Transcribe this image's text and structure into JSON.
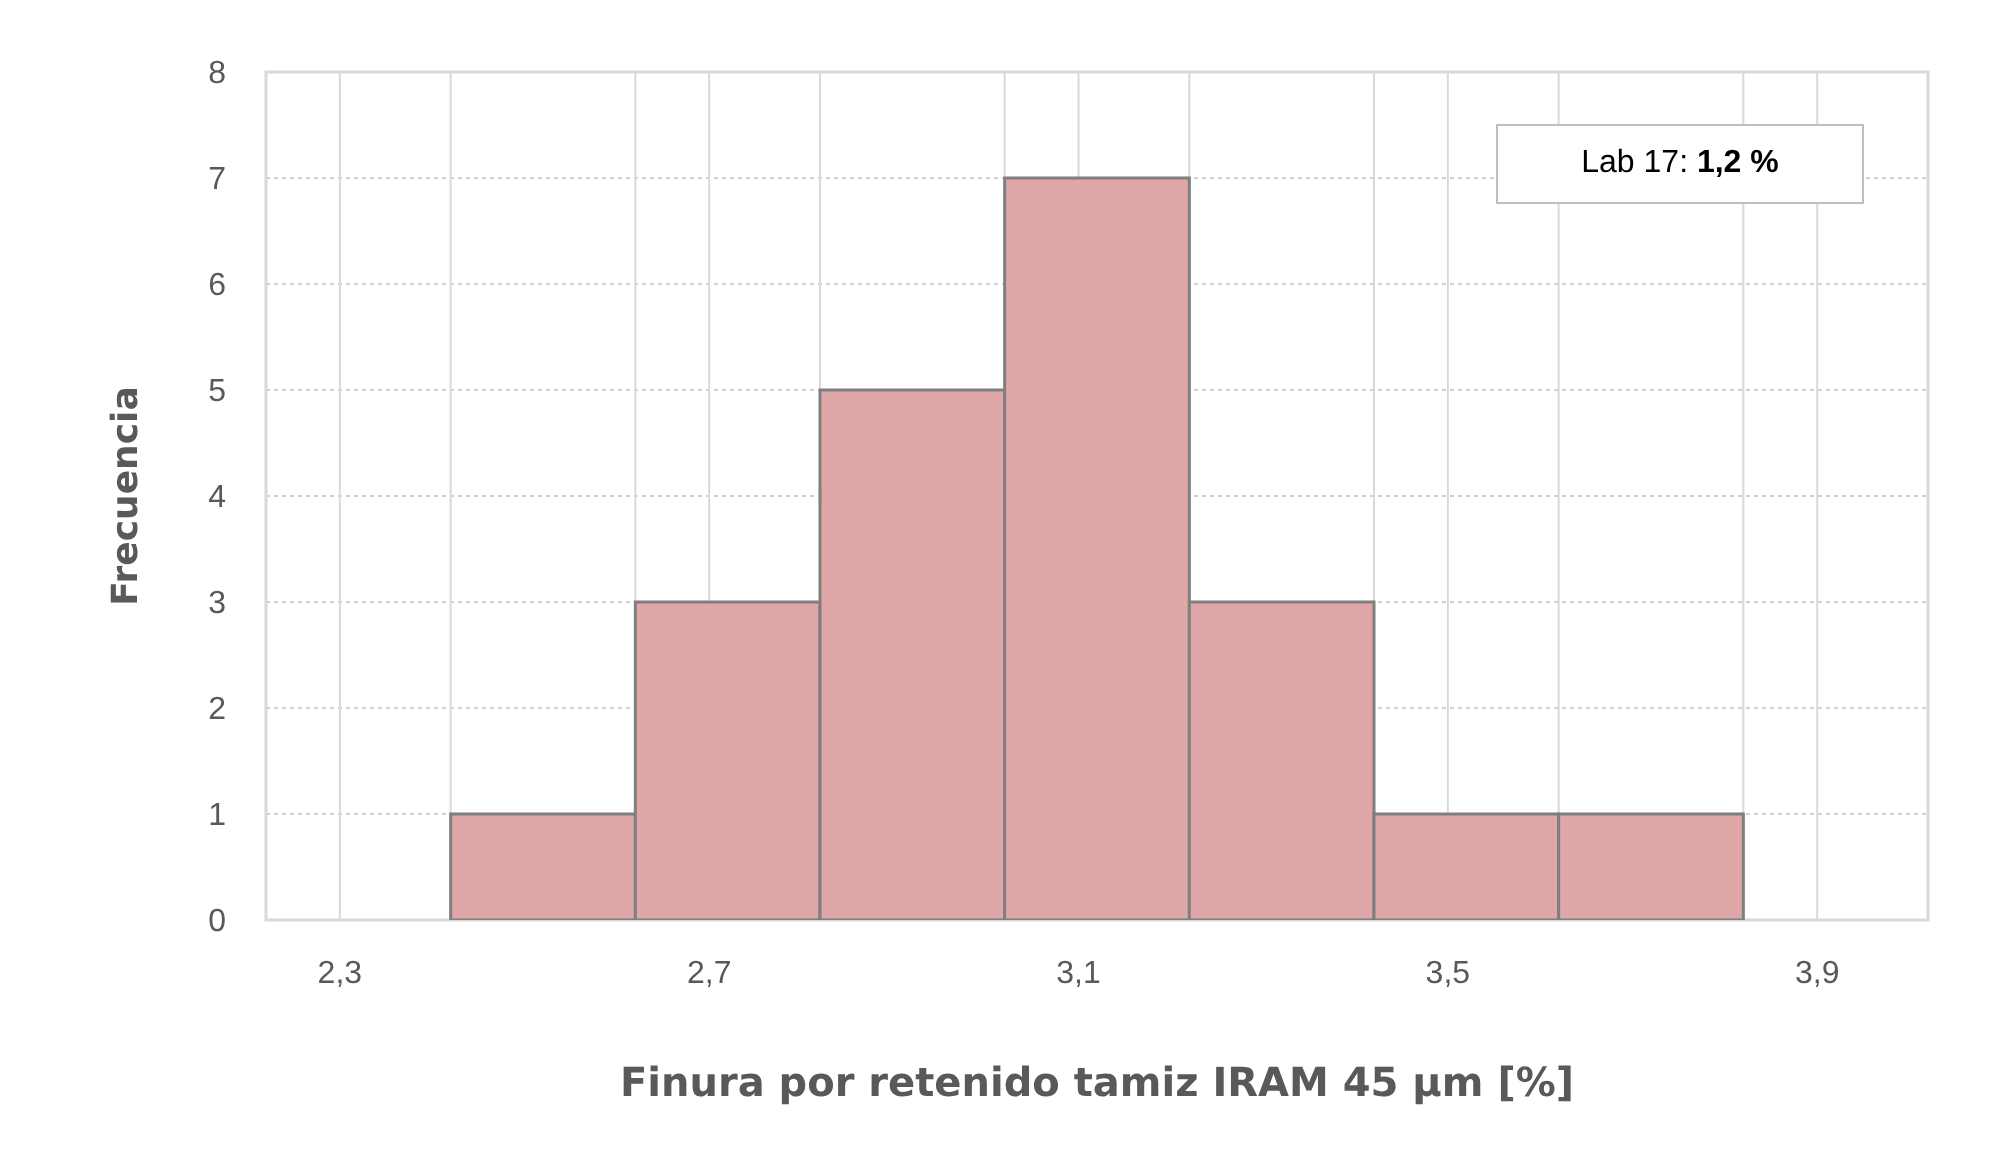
{
  "chart_data": {
    "type": "histogram",
    "bins": [
      2.42,
      2.62,
      2.82,
      3.02,
      3.22,
      3.42,
      3.62,
      3.82
    ],
    "values": [
      1,
      3,
      5,
      7,
      3,
      1,
      1
    ],
    "color": "#dfa7a7",
    "xlabel": "Finura por retenido tamiz IRAM 45 µm [%]",
    "ylabel": "Frecuencia",
    "xlim": [
      2.22,
      4.02
    ],
    "xticks": [
      {
        "value": 2.3,
        "label": "2,3"
      },
      {
        "value": 2.42,
        "label": null
      },
      {
        "value": 2.62,
        "label": null
      },
      {
        "value": 2.7,
        "label": "2,7"
      },
      {
        "value": 2.82,
        "label": null
      },
      {
        "value": 3.02,
        "label": null
      },
      {
        "value": 3.1,
        "label": "3,1"
      },
      {
        "value": 3.22,
        "label": null
      },
      {
        "value": 3.42,
        "label": null
      },
      {
        "value": 3.5,
        "label": "3,5"
      },
      {
        "value": 3.62,
        "label": null
      },
      {
        "value": 3.82,
        "label": null
      },
      {
        "value": 3.9,
        "label": "3,9"
      }
    ],
    "ylim": [
      0,
      8
    ],
    "yticks": [
      0,
      1,
      2,
      3,
      4,
      5,
      6,
      7,
      8
    ],
    "grid": true,
    "annotations": [
      "Lab 17: 1,2 %"
    ]
  }
}
